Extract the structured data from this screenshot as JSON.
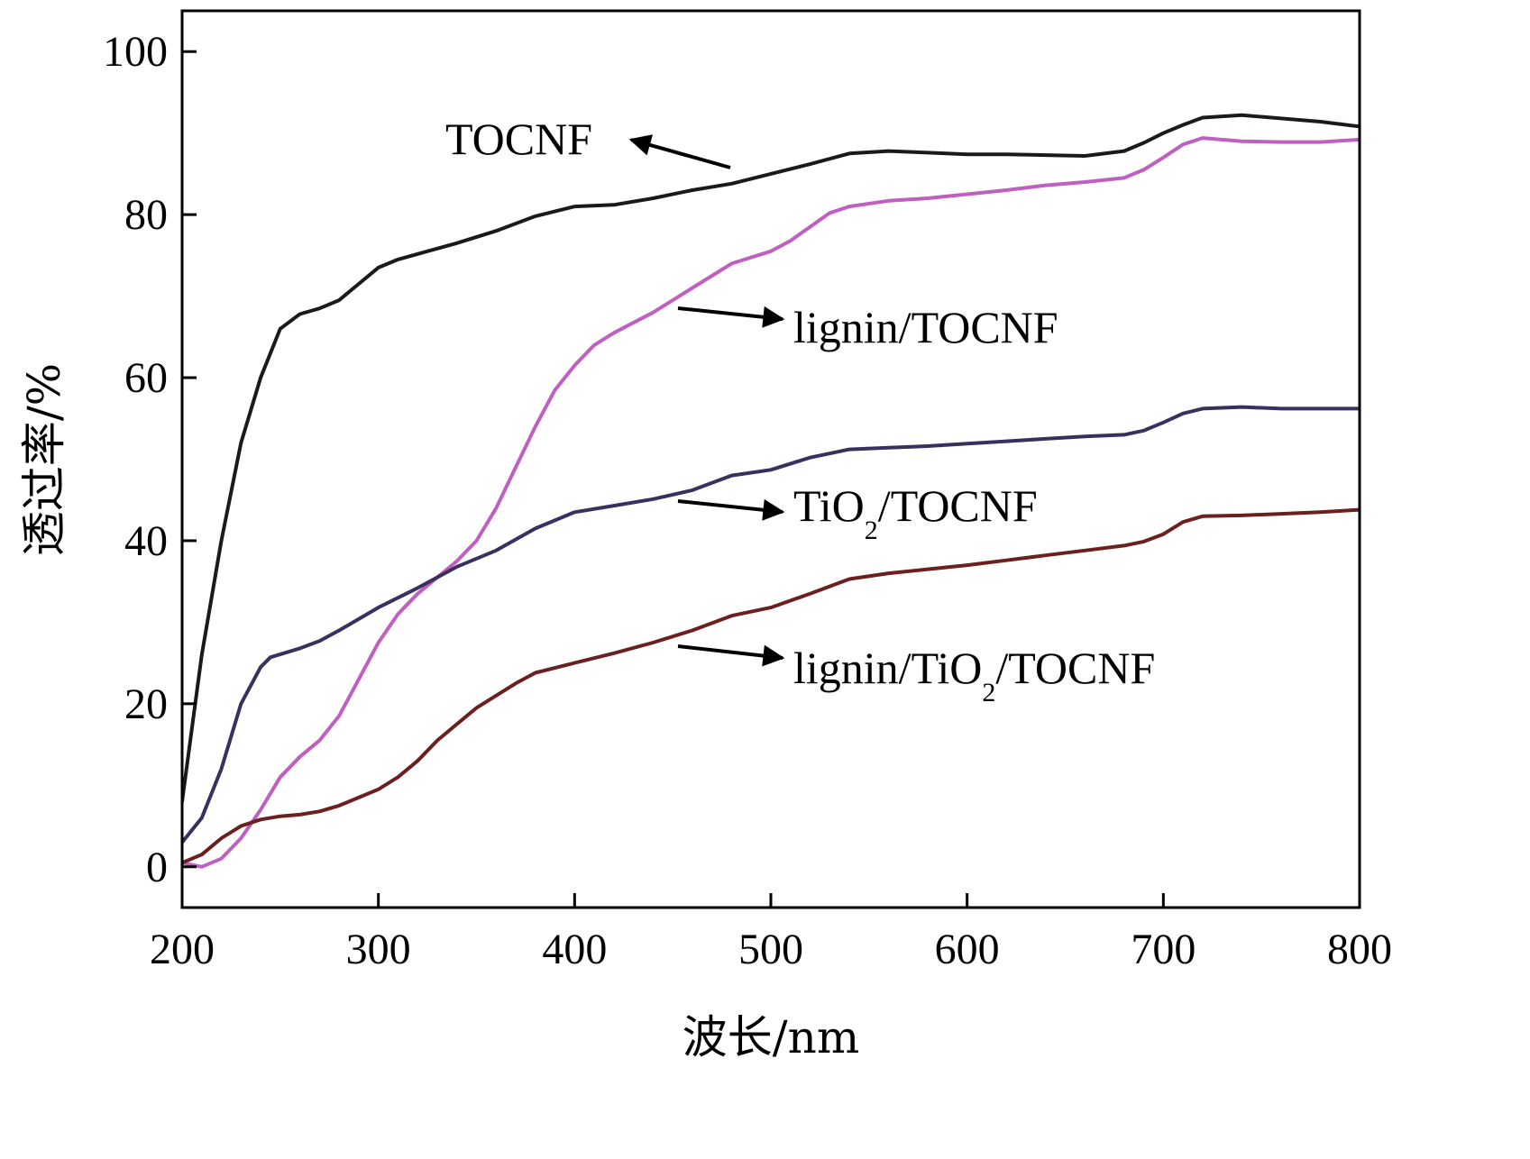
{
  "chart_data": {
    "type": "line",
    "title": "",
    "xlabel": "波长/nm",
    "ylabel": "透过率/%",
    "xlim": [
      200,
      800
    ],
    "ylim": [
      -5,
      105
    ],
    "xticks": [
      200,
      300,
      400,
      500,
      600,
      700,
      800
    ],
    "yticks": [
      0,
      20,
      40,
      60,
      80,
      100
    ],
    "grid": false,
    "legend": "none",
    "series": [
      {
        "name": "TOCNF",
        "color": "#1a1a1a",
        "points": [
          [
            200,
            8
          ],
          [
            210,
            26
          ],
          [
            220,
            40
          ],
          [
            230,
            52
          ],
          [
            240,
            60
          ],
          [
            250,
            66
          ],
          [
            260,
            67.8
          ],
          [
            270,
            68.5
          ],
          [
            280,
            69.5
          ],
          [
            290,
            71.5
          ],
          [
            300,
            73.5
          ],
          [
            310,
            74.5
          ],
          [
            325,
            75.5
          ],
          [
            340,
            76.5
          ],
          [
            360,
            78
          ],
          [
            380,
            79.8
          ],
          [
            400,
            81
          ],
          [
            420,
            81.2
          ],
          [
            440,
            82
          ],
          [
            460,
            83
          ],
          [
            480,
            83.8
          ],
          [
            500,
            85
          ],
          [
            520,
            86.2
          ],
          [
            540,
            87.5
          ],
          [
            560,
            87.8
          ],
          [
            580,
            87.6
          ],
          [
            600,
            87.4
          ],
          [
            620,
            87.4
          ],
          [
            640,
            87.3
          ],
          [
            660,
            87.2
          ],
          [
            680,
            87.8
          ],
          [
            690,
            88.8
          ],
          [
            700,
            90
          ],
          [
            710,
            91
          ],
          [
            720,
            91.9
          ],
          [
            740,
            92.2
          ],
          [
            760,
            91.8
          ],
          [
            780,
            91.4
          ],
          [
            800,
            90.8
          ]
        ]
      },
      {
        "name": "lignin/TOCNF",
        "color": "#bf5fbf",
        "points": [
          [
            200,
            0.5
          ],
          [
            210,
            0
          ],
          [
            220,
            1
          ],
          [
            230,
            3.5
          ],
          [
            240,
            7
          ],
          [
            250,
            11
          ],
          [
            260,
            13.5
          ],
          [
            270,
            15.5
          ],
          [
            280,
            18.5
          ],
          [
            290,
            23
          ],
          [
            300,
            27.5
          ],
          [
            310,
            31
          ],
          [
            320,
            33.5
          ],
          [
            330,
            35.5
          ],
          [
            340,
            37.5
          ],
          [
            350,
            40
          ],
          [
            360,
            44
          ],
          [
            370,
            49
          ],
          [
            380,
            54
          ],
          [
            390,
            58.5
          ],
          [
            400,
            61.5
          ],
          [
            410,
            64
          ],
          [
            420,
            65.5
          ],
          [
            440,
            68
          ],
          [
            460,
            71
          ],
          [
            480,
            74
          ],
          [
            500,
            75.5
          ],
          [
            510,
            76.8
          ],
          [
            520,
            78.5
          ],
          [
            530,
            80.2
          ],
          [
            540,
            81
          ],
          [
            560,
            81.7
          ],
          [
            580,
            82
          ],
          [
            600,
            82.5
          ],
          [
            620,
            83
          ],
          [
            640,
            83.6
          ],
          [
            660,
            84
          ],
          [
            680,
            84.5
          ],
          [
            690,
            85.5
          ],
          [
            700,
            87
          ],
          [
            710,
            88.6
          ],
          [
            720,
            89.4
          ],
          [
            740,
            89
          ],
          [
            760,
            88.9
          ],
          [
            780,
            88.9
          ],
          [
            800,
            89.2
          ]
        ]
      },
      {
        "name": "TiO2/TOCNF",
        "color": "#3a3060",
        "points": [
          [
            200,
            3
          ],
          [
            210,
            6
          ],
          [
            220,
            12
          ],
          [
            230,
            20
          ],
          [
            240,
            24.5
          ],
          [
            245,
            25.7
          ],
          [
            260,
            26.8
          ],
          [
            270,
            27.7
          ],
          [
            280,
            29
          ],
          [
            300,
            31.8
          ],
          [
            320,
            34.2
          ],
          [
            340,
            36.8
          ],
          [
            360,
            38.8
          ],
          [
            380,
            41.5
          ],
          [
            400,
            43.5
          ],
          [
            420,
            44.3
          ],
          [
            440,
            45.1
          ],
          [
            460,
            46.2
          ],
          [
            480,
            48
          ],
          [
            500,
            48.7
          ],
          [
            520,
            50.2
          ],
          [
            540,
            51.2
          ],
          [
            560,
            51.4
          ],
          [
            580,
            51.6
          ],
          [
            600,
            51.9
          ],
          [
            620,
            52.2
          ],
          [
            640,
            52.5
          ],
          [
            660,
            52.8
          ],
          [
            680,
            53
          ],
          [
            690,
            53.5
          ],
          [
            700,
            54.5
          ],
          [
            710,
            55.6
          ],
          [
            720,
            56.2
          ],
          [
            740,
            56.4
          ],
          [
            760,
            56.2
          ],
          [
            780,
            56.2
          ],
          [
            800,
            56.2
          ]
        ]
      },
      {
        "name": "lignin/TiO2/TOCNF",
        "color": "#6b1f1f",
        "points": [
          [
            200,
            0.5
          ],
          [
            210,
            1.5
          ],
          [
            220,
            3.5
          ],
          [
            230,
            5
          ],
          [
            240,
            5.8
          ],
          [
            250,
            6.2
          ],
          [
            260,
            6.4
          ],
          [
            270,
            6.8
          ],
          [
            280,
            7.5
          ],
          [
            290,
            8.5
          ],
          [
            300,
            9.5
          ],
          [
            310,
            11
          ],
          [
            320,
            13
          ],
          [
            330,
            15.5
          ],
          [
            340,
            17.5
          ],
          [
            350,
            19.5
          ],
          [
            360,
            21
          ],
          [
            370,
            22.5
          ],
          [
            380,
            23.8
          ],
          [
            400,
            25
          ],
          [
            420,
            26.2
          ],
          [
            440,
            27.5
          ],
          [
            460,
            29
          ],
          [
            480,
            30.8
          ],
          [
            500,
            31.8
          ],
          [
            520,
            33.5
          ],
          [
            540,
            35.3
          ],
          [
            560,
            36
          ],
          [
            580,
            36.5
          ],
          [
            600,
            37
          ],
          [
            620,
            37.6
          ],
          [
            640,
            38.2
          ],
          [
            660,
            38.8
          ],
          [
            680,
            39.4
          ],
          [
            690,
            39.9
          ],
          [
            700,
            40.8
          ],
          [
            710,
            42.3
          ],
          [
            720,
            43
          ],
          [
            740,
            43.1
          ],
          [
            760,
            43.3
          ],
          [
            780,
            43.5
          ],
          [
            800,
            43.8
          ]
        ]
      }
    ],
    "annotations": [
      {
        "id": "tocnf",
        "text": "TOCNF",
        "series": "TOCNF"
      },
      {
        "id": "lignin-tocnf",
        "text": "lignin/TOCNF",
        "series": "lignin/TOCNF"
      },
      {
        "id": "tio2-tocnf",
        "text_pre": "TiO",
        "sub": "2",
        "text_post": "/TOCNF",
        "series": "TiO2/TOCNF"
      },
      {
        "id": "lignin-tio2-tocnf",
        "text_pre": "lignin/TiO",
        "sub": "2",
        "text_post": "/TOCNF",
        "series": "lignin/TiO2/TOCNF"
      }
    ]
  }
}
